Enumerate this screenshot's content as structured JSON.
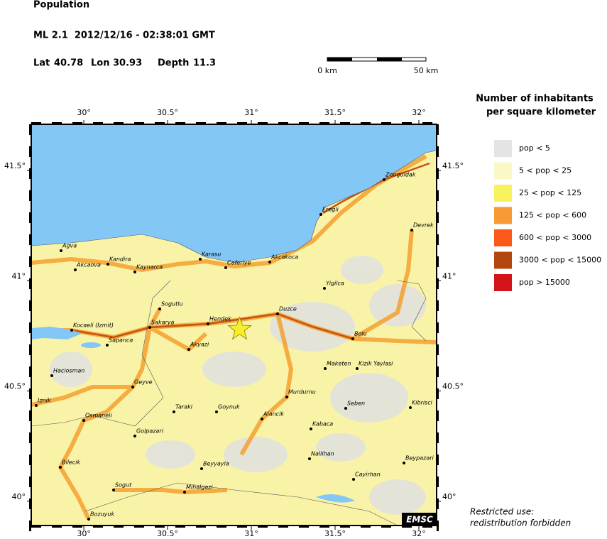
{
  "header": {
    "title": "Population",
    "event": "ML 2.1  2012/12/16 - 02:38:01 GMT",
    "lat_label": "Lat",
    "lat": 40.78,
    "lon_label": "Lon",
    "lon": 30.93,
    "depth_label": "Depth",
    "depth": 11.3
  },
  "scale_bar": {
    "start": "0 km",
    "end": "50 km"
  },
  "map": {
    "xlim": [
      29.686,
      32.106
    ],
    "ylim": [
      39.89,
      41.71
    ],
    "xticks": [
      {
        "value": 30,
        "label": "30°"
      },
      {
        "value": 30.5,
        "label": "30.5°"
      },
      {
        "value": 31,
        "label": "31°"
      },
      {
        "value": 31.5,
        "label": "31.5°"
      },
      {
        "value": 32,
        "label": "32°"
      }
    ],
    "yticks": [
      {
        "value": 40,
        "label": "40°"
      },
      {
        "value": 40.5,
        "label": "40.5°"
      },
      {
        "value": 41,
        "label": "41°"
      },
      {
        "value": 41.5,
        "label": "41.5°"
      }
    ],
    "cities": [
      "Agva",
      "Kandira",
      "Akcaova",
      "Kaynarca",
      "Karasu",
      "Caferiye",
      "Akcakoca",
      "Zonguldak",
      "Eregli",
      "Devrek",
      "Yigilca",
      "Sogutlu",
      "Hendek",
      "Duzce",
      "Sakarya",
      "Kocaeli (Izmit)",
      "Sapanca",
      "Akyazi",
      "Bolu",
      "Maketen",
      "Kizik Yaylasi",
      "Haciosman",
      "Geyve",
      "Murdurnu",
      "Iznik",
      "Taraki",
      "Goynuk",
      "Alancik",
      "Seben",
      "Kibrisci",
      "Osmaneli",
      "Kabaca",
      "Golpazari",
      "Nallihan",
      "Beypazari",
      "Bilecik",
      "Beyyayla",
      "Cayirhan",
      "Sogut",
      "Mihalgazi",
      "Bozuyuk"
    ],
    "badge": "EMSC"
  },
  "legend": {
    "title": [
      "Number of inhabitants",
      "per square kilometer"
    ],
    "items": [
      {
        "label": "pop < 5",
        "color": "#e4e4e4"
      },
      {
        "label": "5 < pop < 25",
        "color": "#fbf8c8"
      },
      {
        "label": "25 < pop < 125",
        "color": "#f8f35c"
      },
      {
        "label": "125 < pop < 600",
        "color": "#f89a35"
      },
      {
        "label": "600 < pop < 3000",
        "color": "#fa5a18"
      },
      {
        "label": "3000 < pop < 15000",
        "color": "#b4470f"
      },
      {
        "label": "pop > 15000",
        "color": "#d5141a"
      }
    ]
  },
  "note": [
    "Restricted use:",
    "redistribution forbidden"
  ]
}
